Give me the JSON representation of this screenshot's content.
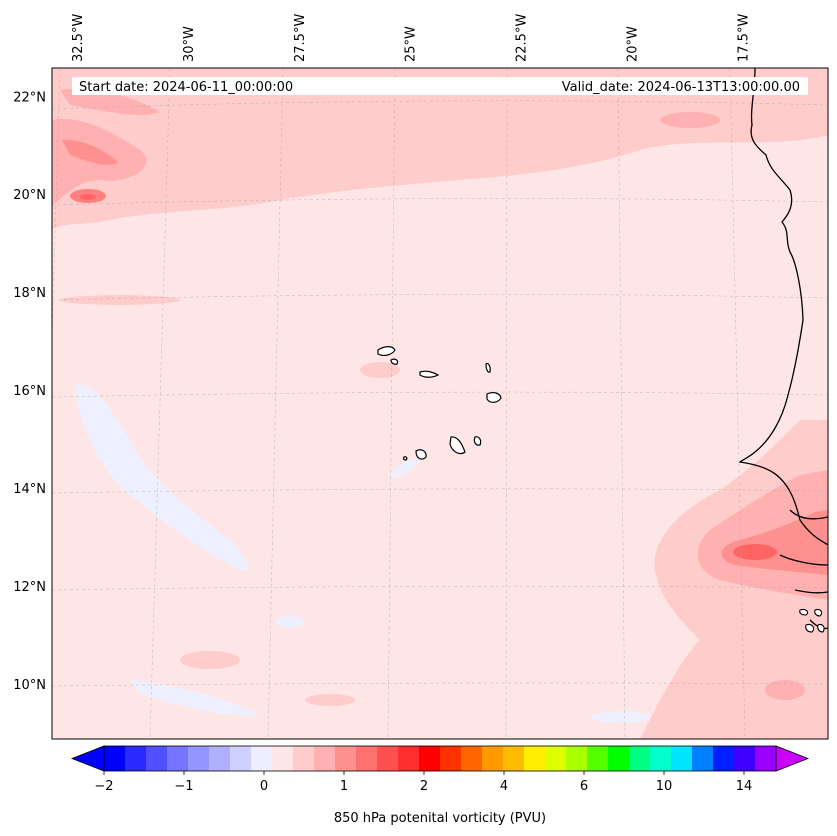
{
  "chart_data": {
    "type": "heatmap",
    "title": "",
    "header": {
      "start_date": "Start date: 2024-06-11_00:00:00",
      "valid_date": "Valid_date: 2024-06-13T13:00:00.00"
    },
    "map": {
      "lon_range": [
        -33,
        -15.5
      ],
      "lat_range": [
        9,
        22.7
      ],
      "lon_ticks": [
        "32.5°W",
        "30°W",
        "27.5°W",
        "25°W",
        "22.5°W",
        "20°W",
        "17.5°W"
      ],
      "lon_tick_values": [
        -32.5,
        -30,
        -27.5,
        -25,
        -22.5,
        -20,
        -17.5
      ],
      "lat_ticks": [
        "22°N",
        "20°N",
        "18°N",
        "16°N",
        "14°N",
        "12°N",
        "10°N"
      ],
      "lat_tick_values": [
        22,
        20,
        18,
        16,
        14,
        12,
        10
      ],
      "grid": true
    },
    "colorbar": {
      "label": "850 hPa potenital vorticity (PVU)",
      "tick_labels": [
        "−2",
        "−1",
        "0",
        "1",
        "2",
        "4",
        "6",
        "10",
        "14"
      ],
      "tick_positions": [
        -2,
        -1,
        0,
        1,
        2,
        4,
        6,
        10,
        14
      ],
      "colors": [
        "#0000ff",
        "#2a2aff",
        "#5050ff",
        "#7575ff",
        "#9595ff",
        "#b0b0ff",
        "#d0d0ff",
        "#eeeeff",
        "#ffe6e6",
        "#ffcccc",
        "#ffb0b0",
        "#ff9090",
        "#ff7070",
        "#ff5050",
        "#ff2d2d",
        "#ff0000",
        "#ff3300",
        "#ff6600",
        "#ff9900",
        "#ffbb00",
        "#ffee00",
        "#ddff00",
        "#aaff00",
        "#55ff00",
        "#00ff00",
        "#00ff80",
        "#00ffcc",
        "#00e5ff",
        "#0080ff",
        "#0020ff",
        "#4000ff",
        "#9900ff"
      ],
      "extend": "both"
    },
    "field_levels": {
      "background": "#ffe6e6",
      "light_pink": "#ffcccc",
      "pink": "#ffb0b0",
      "red": "#ff8080",
      "deep_red": "#ff6464",
      "negative": "#eef0ff"
    }
  }
}
